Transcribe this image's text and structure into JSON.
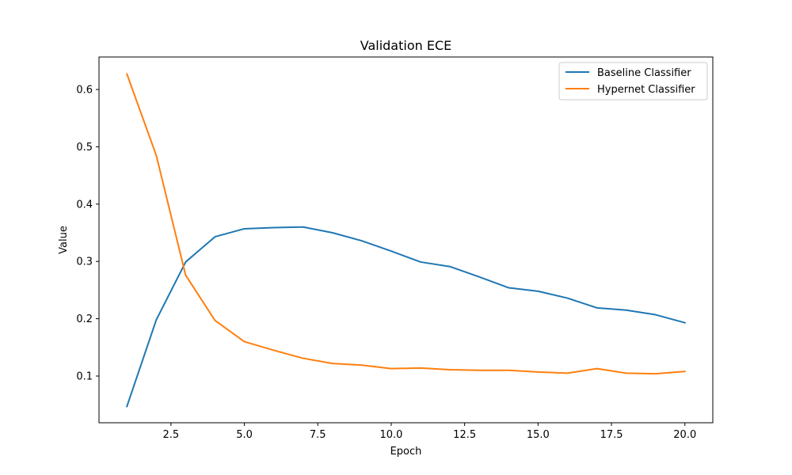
{
  "chart_data": {
    "type": "line",
    "title": "Validation ECE",
    "xlabel": "Epoch",
    "ylabel": "Value",
    "xlim": [
      0.05,
      20.95
    ],
    "ylim": [
      0.0185,
      0.6567
    ],
    "xticks": [
      2.5,
      5.0,
      7.5,
      10.0,
      12.5,
      15.0,
      17.5,
      20.0
    ],
    "xtick_labels": [
      "2.5",
      "5.0",
      "7.5",
      "10.0",
      "12.5",
      "15.0",
      "17.5",
      "20.0"
    ],
    "yticks": [
      0.1,
      0.2,
      0.3,
      0.4,
      0.5,
      0.6
    ],
    "ytick_labels": [
      "0.1",
      "0.2",
      "0.3",
      "0.4",
      "0.5",
      "0.6"
    ],
    "grid": false,
    "legend_position": "top-right",
    "x": [
      1,
      2,
      3,
      4,
      5,
      6,
      7,
      8,
      9,
      10,
      11,
      12,
      13,
      14,
      15,
      16,
      17,
      18,
      19,
      20
    ],
    "series": [
      {
        "name": "Baseline Classifier",
        "color": "#1f77b4",
        "values": [
          0.047,
          0.198,
          0.299,
          0.343,
          0.357,
          0.359,
          0.36,
          0.35,
          0.336,
          0.318,
          0.299,
          0.291,
          0.273,
          0.254,
          0.248,
          0.236,
          0.219,
          0.215,
          0.207,
          0.193
        ]
      },
      {
        "name": "Hypernet Classifier",
        "color": "#ff7f0e",
        "values": [
          0.627,
          0.485,
          0.276,
          0.197,
          0.16,
          0.145,
          0.131,
          0.122,
          0.119,
          0.113,
          0.114,
          0.111,
          0.11,
          0.11,
          0.107,
          0.105,
          0.113,
          0.105,
          0.104,
          0.108
        ]
      }
    ]
  }
}
